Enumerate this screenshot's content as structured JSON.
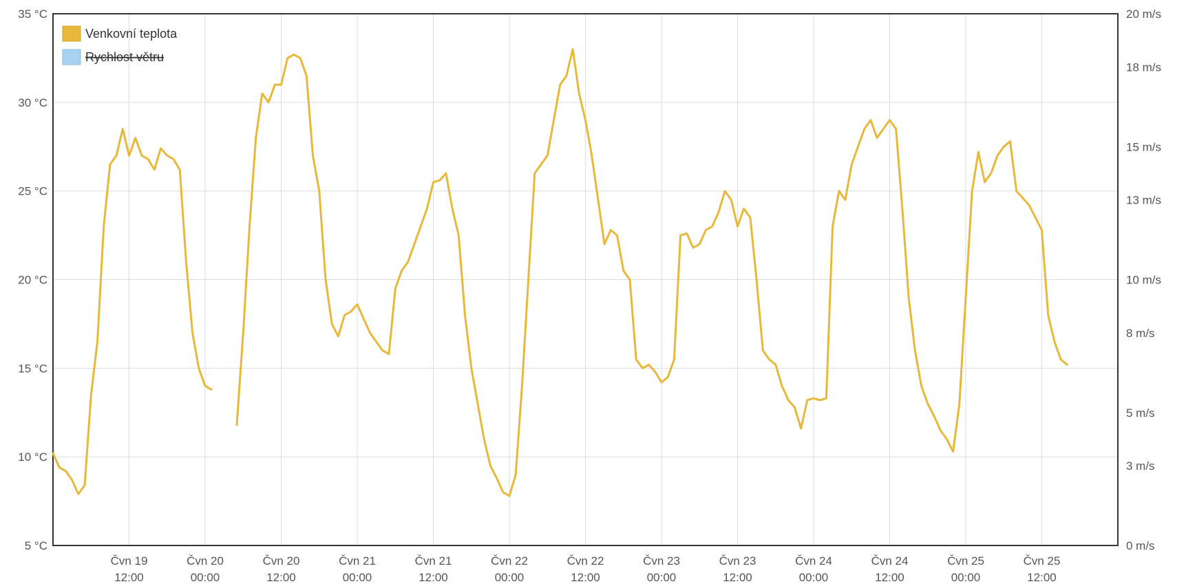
{
  "chart_data": {
    "type": "line",
    "legend": [
      {
        "label": "Venkovní teplota",
        "color": "#e8b83a",
        "hidden": false
      },
      {
        "label": "Rychlost větru",
        "color": "#a9d2f0",
        "hidden": true
      }
    ],
    "legend_position": "top-left",
    "grid": true,
    "y_left": {
      "ticks": [
        "5 °C",
        "10 °C",
        "15 °C",
        "20 °C",
        "25 °C",
        "30 °C",
        "35 °C"
      ],
      "range": [
        5,
        35
      ],
      "unit": "°C"
    },
    "y_right": {
      "ticks": [
        "0 m/s",
        "3 m/s",
        "5 m/s",
        "8 m/s",
        "10 m/s",
        "13 m/s",
        "15 m/s",
        "18 m/s",
        "20 m/s"
      ],
      "range": [
        0,
        20
      ],
      "unit": "m/s"
    },
    "x_range_hours": [
      0,
      168
    ],
    "x_ticks": [
      {
        "h": 12,
        "line1": "Čvn 19",
        "line2": "12:00"
      },
      {
        "h": 24,
        "line1": "Čvn 20",
        "line2": "00:00"
      },
      {
        "h": 36,
        "line1": "Čvn 20",
        "line2": "12:00"
      },
      {
        "h": 48,
        "line1": "Čvn 21",
        "line2": "00:00"
      },
      {
        "h": 60,
        "line1": "Čvn 21",
        "line2": "12:00"
      },
      {
        "h": 72,
        "line1": "Čvn 22",
        "line2": "00:00"
      },
      {
        "h": 84,
        "line1": "Čvn 22",
        "line2": "12:00"
      },
      {
        "h": 96,
        "line1": "Čvn 23",
        "line2": "00:00"
      },
      {
        "h": 108,
        "line1": "Čvn 23",
        "line2": "12:00"
      },
      {
        "h": 120,
        "line1": "Čvn 24",
        "line2": "00:00"
      },
      {
        "h": 132,
        "line1": "Čvn 24",
        "line2": "12:00"
      },
      {
        "h": 144,
        "line1": "Čvn 25",
        "line2": "00:00"
      },
      {
        "h": 156,
        "line1": "Čvn 25",
        "line2": "12:00"
      }
    ],
    "series": [
      {
        "name": "Venkovní teplota",
        "color": "#e8b83a",
        "segments": [
          [
            [
              0,
              10.2
            ],
            [
              1,
              9.4
            ],
            [
              2,
              9.2
            ],
            [
              3,
              8.7
            ],
            [
              4,
              7.9
            ],
            [
              5,
              8.4
            ],
            [
              6,
              13.5
            ],
            [
              7,
              16.5
            ],
            [
              8,
              23
            ],
            [
              9,
              26.5
            ],
            [
              10,
              27
            ],
            [
              11,
              28.5
            ],
            [
              12,
              27
            ],
            [
              13,
              28
            ],
            [
              14,
              27
            ],
            [
              15,
              26.8
            ],
            [
              16,
              26.2
            ],
            [
              17,
              27.4
            ],
            [
              18,
              27
            ],
            [
              19,
              26.8
            ],
            [
              20,
              26.2
            ],
            [
              21,
              21
            ],
            [
              22,
              17
            ],
            [
              23,
              15
            ],
            [
              24,
              14
            ],
            [
              25,
              13.8
            ]
          ],
          [
            [
              29,
              11.8
            ],
            [
              30,
              17
            ],
            [
              31,
              23
            ],
            [
              32,
              28
            ],
            [
              33,
              30.5
            ],
            [
              34,
              30
            ],
            [
              35,
              31
            ],
            [
              36,
              31
            ],
            [
              37,
              32.5
            ],
            [
              38,
              32.7
            ],
            [
              39,
              32.5
            ],
            [
              40,
              31.5
            ],
            [
              41,
              27
            ],
            [
              42,
              25
            ],
            [
              43,
              20
            ],
            [
              44,
              17.5
            ],
            [
              45,
              16.8
            ],
            [
              46,
              18
            ],
            [
              47,
              18.2
            ],
            [
              48,
              18.6
            ],
            [
              49,
              17.8
            ],
            [
              50,
              17
            ],
            [
              51,
              16.5
            ],
            [
              52,
              16
            ],
            [
              53,
              15.8
            ],
            [
              54,
              19.5
            ],
            [
              55,
              20.5
            ],
            [
              56,
              21
            ],
            [
              57,
              22
            ],
            [
              58,
              23
            ],
            [
              59,
              24
            ],
            [
              60,
              25.5
            ],
            [
              61,
              25.6
            ],
            [
              62,
              26
            ],
            [
              63,
              24
            ],
            [
              64,
              22.5
            ],
            [
              65,
              18
            ],
            [
              66,
              15
            ],
            [
              67,
              13
            ],
            [
              68,
              11
            ],
            [
              69,
              9.5
            ],
            [
              70,
              8.8
            ],
            [
              71,
              8
            ],
            [
              72,
              7.8
            ],
            [
              73,
              9
            ],
            [
              74,
              14
            ],
            [
              75,
              20
            ],
            [
              76,
              26
            ],
            [
              77,
              26.5
            ],
            [
              78,
              27
            ],
            [
              79,
              29
            ],
            [
              80,
              31
            ],
            [
              81,
              31.5
            ],
            [
              82,
              33
            ],
            [
              83,
              30.5
            ],
            [
              84,
              29
            ],
            [
              85,
              27
            ],
            [
              86,
              24.5
            ],
            [
              87,
              22
            ],
            [
              88,
              22.8
            ],
            [
              89,
              22.5
            ],
            [
              90,
              20.5
            ],
            [
              91,
              20
            ],
            [
              92,
              15.5
            ],
            [
              93,
              15
            ],
            [
              94,
              15.2
            ],
            [
              95,
              14.8
            ],
            [
              96,
              14.2
            ],
            [
              97,
              14.5
            ],
            [
              98,
              15.5
            ],
            [
              99,
              22.5
            ],
            [
              100,
              22.6
            ],
            [
              101,
              21.8
            ],
            [
              102,
              22
            ],
            [
              103,
              22.8
            ],
            [
              104,
              23
            ],
            [
              105,
              23.8
            ],
            [
              106,
              25
            ],
            [
              107,
              24.5
            ],
            [
              108,
              23
            ],
            [
              109,
              24
            ],
            [
              110,
              23.5
            ],
            [
              111,
              20
            ],
            [
              112,
              16
            ],
            [
              113,
              15.5
            ],
            [
              114,
              15.2
            ],
            [
              115,
              14
            ],
            [
              116,
              13.2
            ],
            [
              117,
              12.8
            ],
            [
              118,
              11.6
            ],
            [
              119,
              13.2
            ],
            [
              120,
              13.3
            ],
            [
              121,
              13.2
            ],
            [
              122,
              13.3
            ],
            [
              123,
              23
            ],
            [
              124,
              25
            ],
            [
              125,
              24.5
            ],
            [
              126,
              26.5
            ],
            [
              127,
              27.5
            ],
            [
              128,
              28.5
            ],
            [
              129,
              29
            ],
            [
              130,
              28
            ],
            [
              131,
              28.5
            ],
            [
              132,
              29
            ],
            [
              133,
              28.5
            ],
            [
              134,
              24
            ],
            [
              135,
              19
            ],
            [
              136,
              16
            ],
            [
              137,
              14
            ],
            [
              138,
              13
            ],
            [
              139,
              12.3
            ],
            [
              140,
              11.5
            ],
            [
              141,
              11
            ],
            [
              142,
              10.3
            ],
            [
              143,
              13
            ],
            [
              144,
              19
            ],
            [
              145,
              25
            ],
            [
              146,
              27.2
            ],
            [
              147,
              25.5
            ],
            [
              148,
              26
            ],
            [
              149,
              27
            ],
            [
              150,
              27.5
            ],
            [
              151,
              27.8
            ],
            [
              152,
              25
            ],
            [
              153,
              24.6
            ],
            [
              154,
              24.2
            ],
            [
              155,
              23.5
            ],
            [
              156,
              22.8
            ],
            [
              157,
              18
            ],
            [
              158,
              16.5
            ],
            [
              159,
              15.5
            ],
            [
              160,
              15.2
            ]
          ]
        ]
      }
    ]
  }
}
